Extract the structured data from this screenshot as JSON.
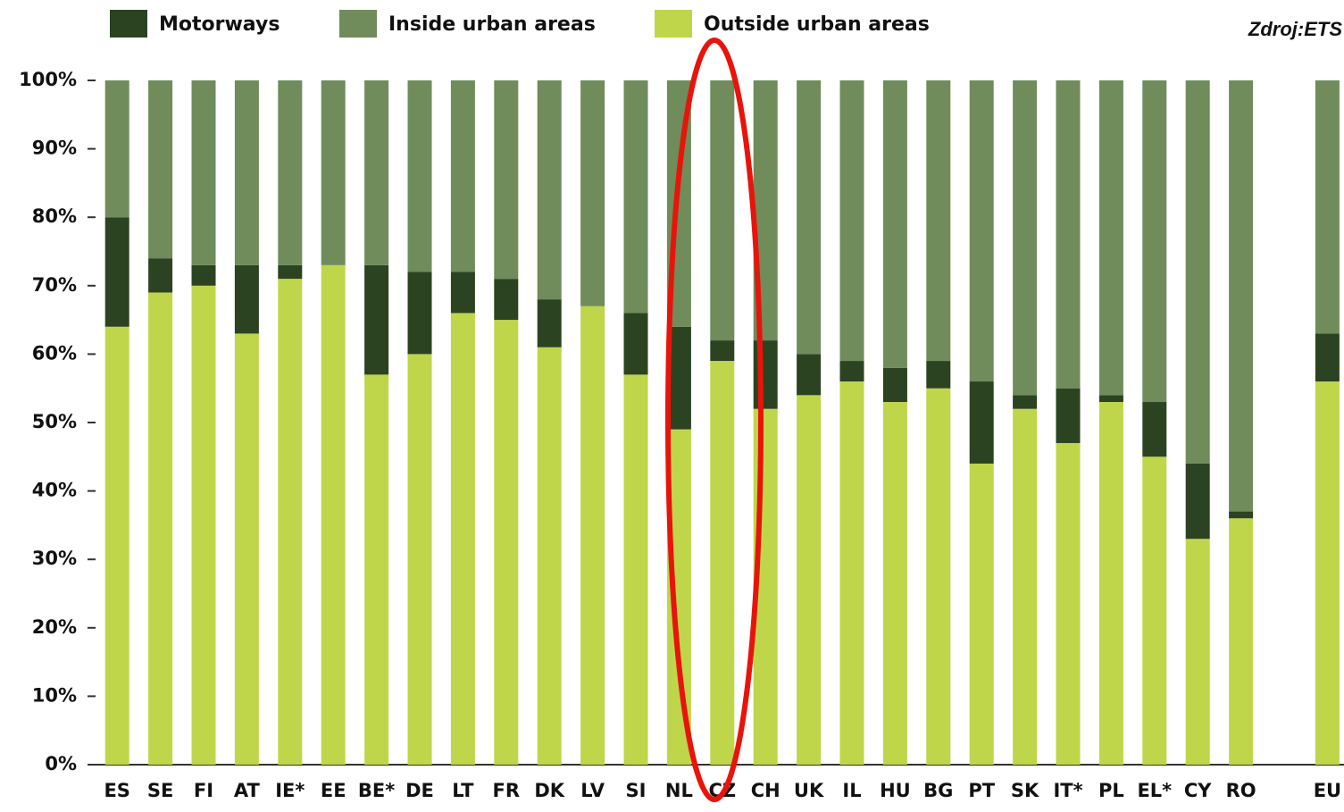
{
  "chart_data": {
    "type": "stacked_bar",
    "source": "Zdroj:ETS",
    "categories": [
      "ES",
      "SE",
      "FI",
      "AT",
      "IE*",
      "EE",
      "BE*",
      "DE",
      "LT",
      "FR",
      "DK",
      "LV",
      "SI",
      "NL",
      "CZ",
      "CH",
      "UK",
      "IL",
      "HU",
      "BG",
      "PT",
      "SK",
      "IT*",
      "PL",
      "EL*",
      "CY",
      "RO",
      null,
      "EU"
    ],
    "series": [
      {
        "name": "Motorways",
        "color": "#2b4321",
        "values": [
          16,
          5,
          3,
          10,
          2,
          0,
          16,
          12,
          6,
          6,
          7,
          0,
          9,
          15,
          3,
          10,
          6,
          3,
          5,
          4,
          12,
          2,
          8,
          1,
          8,
          11,
          1,
          null,
          7
        ]
      },
      {
        "name": "Inside urban areas",
        "color": "#6f8c5a",
        "values": [
          20,
          26,
          27,
          27,
          27,
          27,
          27,
          28,
          28,
          29,
          32,
          33,
          34,
          36,
          38,
          38,
          40,
          41,
          42,
          41,
          44,
          46,
          45,
          46,
          47,
          56,
          63,
          null,
          37
        ]
      },
      {
        "name": "Outside urban areas",
        "color": "#bfd64a",
        "values": [
          64,
          69,
          70,
          63,
          71,
          73,
          57,
          60,
          66,
          65,
          61,
          67,
          57,
          49,
          59,
          52,
          54,
          56,
          53,
          55,
          44,
          52,
          47,
          53,
          45,
          33,
          36,
          null,
          56
        ]
      }
    ],
    "ylim": [
      0,
      100
    ],
    "yticks": [
      {
        "value": 0,
        "label": "0%"
      },
      {
        "value": 10,
        "label": "10%"
      },
      {
        "value": 20,
        "label": "20%"
      },
      {
        "value": 30,
        "label": "30%"
      },
      {
        "value": 40,
        "label": "40%"
      },
      {
        "value": 50,
        "label": "50%"
      },
      {
        "value": 60,
        "label": "60%"
      },
      {
        "value": 70,
        "label": "70%"
      },
      {
        "value": 80,
        "label": "80%"
      },
      {
        "value": 90,
        "label": "90%"
      },
      {
        "value": 100,
        "label": "100%"
      }
    ]
  }
}
